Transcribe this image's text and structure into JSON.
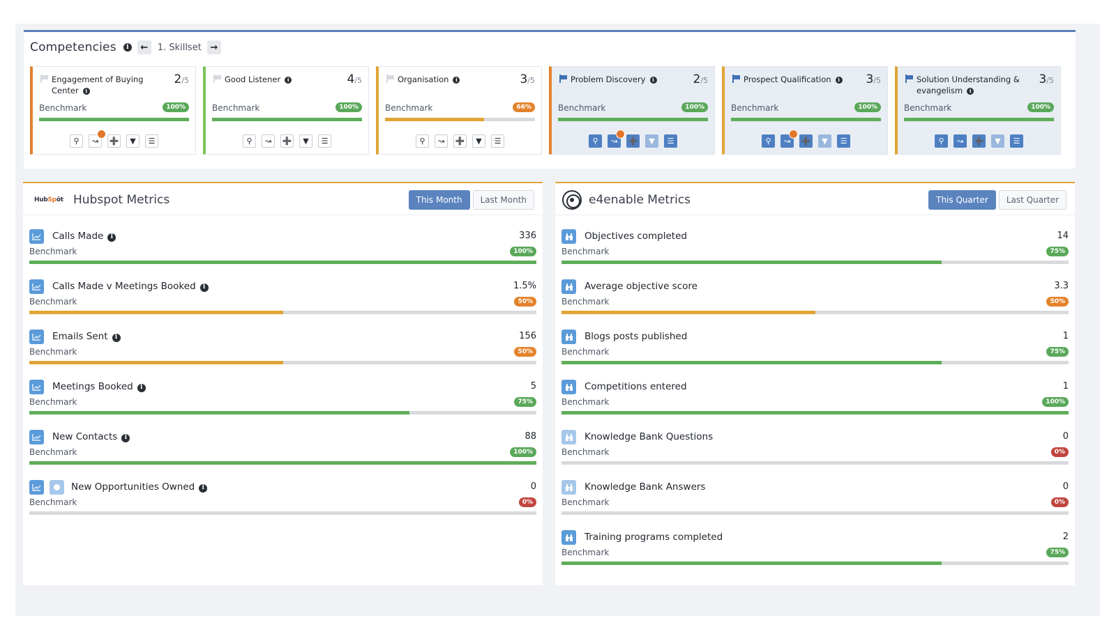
{
  "colors": {
    "green": "#5fae5a",
    "orange": "#e1a437",
    "badge_green": "#5aa85a",
    "badge_orange": "#e4822b",
    "badge_red": "#c0463e",
    "accent_blue": "#5b84bf"
  },
  "competencies": {
    "title": "Competencies",
    "prev_icon": "arrow-left-icon",
    "next_icon": "arrow-right-icon",
    "skillset_label": "1. Skillset",
    "benchmark_label": "Benchmark",
    "cards": [
      {
        "name": "Engagement of Buying Center",
        "score": "2",
        "out_of": "5",
        "badge": "100%",
        "progress": 1.0,
        "active": false,
        "border": "orange",
        "flag": "grey",
        "notif": true
      },
      {
        "name": "Good Listener",
        "score": "4",
        "out_of": "5",
        "badge": "100%",
        "progress": 1.0,
        "active": false,
        "border": "green",
        "flag": "grey",
        "notif": false
      },
      {
        "name": "Organisation",
        "score": "3",
        "out_of": "5",
        "badge": "66%",
        "progress": 0.66,
        "active": false,
        "border": "yellow",
        "flag": "grey",
        "notif": false
      },
      {
        "name": "Problem Discovery",
        "score": "2",
        "out_of": "5",
        "badge": "100%",
        "progress": 1.0,
        "active": true,
        "border": "orange",
        "flag": "blue",
        "notif": true
      },
      {
        "name": "Prospect Qualification",
        "score": "3",
        "out_of": "5",
        "badge": "100%",
        "progress": 1.0,
        "active": true,
        "border": "yellow",
        "flag": "blue",
        "notif": true
      },
      {
        "name": "Solution Understanding & evangelism",
        "score": "3",
        "out_of": "5",
        "badge": "100%",
        "progress": 1.0,
        "active": true,
        "border": "yellow",
        "flag": "blue",
        "notif": false
      }
    ]
  },
  "hubspot": {
    "logo_text": "HubSpot",
    "title": "Hubspot Metrics",
    "this_label": "This Month",
    "last_label": "Last Month",
    "benchmark_label": "Benchmark",
    "metrics": [
      {
        "name": "Calls Made",
        "value": "336",
        "badge": "100%",
        "progress": 1.0,
        "info": true,
        "extra_icon": false
      },
      {
        "name": "Calls Made v Meetings Booked",
        "value": "1.5%",
        "badge": "50%",
        "progress": 0.5,
        "info": true,
        "extra_icon": false
      },
      {
        "name": "Emails Sent",
        "value": "156",
        "badge": "50%",
        "progress": 0.5,
        "info": true,
        "extra_icon": false
      },
      {
        "name": "Meetings Booked",
        "value": "5",
        "badge": "75%",
        "progress": 0.75,
        "info": true,
        "extra_icon": false
      },
      {
        "name": "New Contacts",
        "value": "88",
        "badge": "100%",
        "progress": 1.0,
        "info": true,
        "extra_icon": false
      },
      {
        "name": "New Opportunities Owned",
        "value": "0",
        "badge": "0%",
        "progress": 0.0,
        "info": true,
        "extra_icon": true
      }
    ]
  },
  "e4enable": {
    "title": "e4enable Metrics",
    "this_label": "This Quarter",
    "last_label": "Last Quarter",
    "benchmark_label": "Benchmark",
    "metrics": [
      {
        "name": "Objectives completed",
        "value": "14",
        "badge": "75%",
        "progress": 0.75
      },
      {
        "name": "Average objective score",
        "value": "3.3",
        "badge": "50%",
        "progress": 0.5
      },
      {
        "name": "Blogs posts published",
        "value": "1",
        "badge": "75%",
        "progress": 0.75
      },
      {
        "name": "Competitions entered",
        "value": "1",
        "badge": "100%",
        "progress": 1.0
      },
      {
        "name": "Knowledge Bank Questions",
        "value": "0",
        "badge": "0%",
        "progress": 0.0
      },
      {
        "name": "Knowledge Bank Answers",
        "value": "0",
        "badge": "0%",
        "progress": 0.0
      },
      {
        "name": "Training programs completed",
        "value": "2",
        "badge": "75%",
        "progress": 0.75
      }
    ]
  }
}
